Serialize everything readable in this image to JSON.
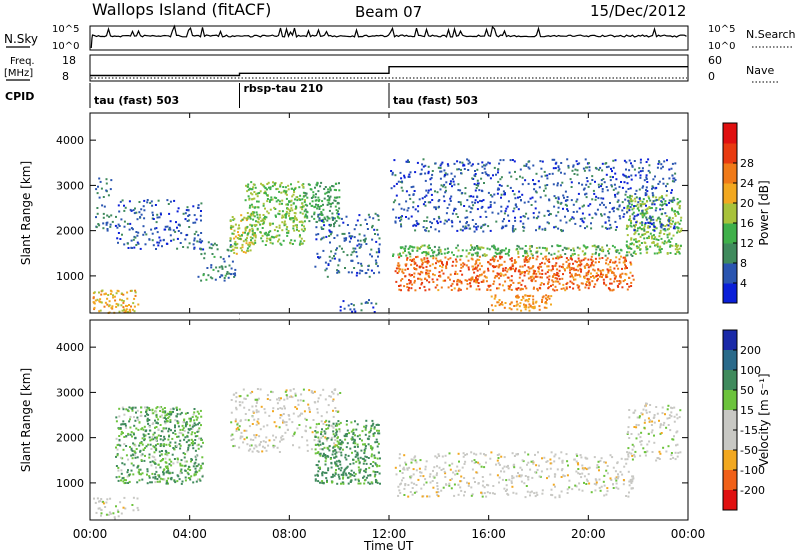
{
  "header": {
    "station": "Wallops Island (fitACF)",
    "beam": "Beam 07",
    "date": "15/Dec/2012"
  },
  "top_panels": {
    "nsky_label": "N.Sky",
    "nsky_ticks": [
      "10^5",
      "10^0"
    ],
    "nsearch_label": "N.Search",
    "freq_label_line1": "Freq.",
    "freq_label_line2": "[MHz]",
    "freq_ticks": [
      "18",
      "8"
    ],
    "nave_label": "Nave",
    "nave_ticks": [
      "60",
      "0"
    ],
    "cpid_label": "CPID",
    "cpid_segments": [
      {
        "label": "tau (fast) 503",
        "start_hr": 0,
        "end_hr": 6
      },
      {
        "label": "rbsp-tau 210",
        "start_hr": 6,
        "end_hr": 12
      },
      {
        "label": "tau (fast) 503",
        "start_hr": 12,
        "end_hr": 24
      }
    ]
  },
  "axes": {
    "xlabel": "Time UT",
    "x_ticks": [
      "00:00",
      "04:00",
      "08:00",
      "12:00",
      "16:00",
      "20:00",
      "00:00"
    ],
    "ylabel": "Slant Range [km]",
    "y_ticks": [
      "1000",
      "2000",
      "3000",
      "4000"
    ]
  },
  "colorbars": {
    "power": {
      "title": "Power [dB]",
      "ticks": [
        "4",
        "8",
        "12",
        "16",
        "20",
        "24",
        "28"
      ],
      "colors": [
        "#0a1fd8",
        "#2a55b0",
        "#3f8a5c",
        "#3fb04a",
        "#a8c23a",
        "#f2a820",
        "#f07a18",
        "#e83a10",
        "#e01010"
      ]
    },
    "velocity": {
      "title": "Velocity [m s⁻¹]",
      "ticks": [
        "200",
        "100",
        "50",
        "15",
        "-15",
        "-50",
        "-100",
        "-200"
      ],
      "colors": [
        "#1a2aa8",
        "#2a6a8a",
        "#3f8a5c",
        "#6cc33c",
        "#c8c8c4",
        "#c8c8c4",
        "#f2a820",
        "#f06018",
        "#e01010"
      ]
    }
  },
  "chart_data": {
    "type": "heatmap",
    "title": "Wallops Island (fitACF)  Beam 07  15/Dec/2012",
    "xlabel": "Time UT",
    "ylabel": "Slant Range [km]",
    "xlim": [
      0,
      24
    ],
    "ylim": [
      180,
      4600
    ],
    "frequency_mhz": [
      {
        "start_hr": 0,
        "end_hr": 6,
        "value": 10.5
      },
      {
        "start_hr": 6,
        "end_hr": 12,
        "value": 11.5
      },
      {
        "start_hr": 12,
        "end_hr": 24,
        "value": 14.5
      }
    ],
    "power_regions_db": [
      {
        "t0": 0.1,
        "t1": 1.9,
        "r0": 200,
        "r1": 700,
        "value": 22
      },
      {
        "t0": 0.2,
        "t1": 0.9,
        "r0": 2000,
        "r1": 3200,
        "value": 8
      },
      {
        "t0": 1.0,
        "t1": 4.5,
        "r0": 1600,
        "r1": 2700,
        "value": 6
      },
      {
        "t0": 4.3,
        "t1": 5.8,
        "r0": 900,
        "r1": 1800,
        "value": 9
      },
      {
        "t0": 5.6,
        "t1": 6.6,
        "r0": 1500,
        "r1": 2400,
        "value": 18
      },
      {
        "t0": 6.2,
        "t1": 8.6,
        "r0": 1700,
        "r1": 3100,
        "value": 16
      },
      {
        "t0": 8.6,
        "t1": 10.0,
        "r0": 2200,
        "r1": 3100,
        "value": 12
      },
      {
        "t0": 9.0,
        "t1": 11.6,
        "r0": 1000,
        "r1": 2400,
        "value": 7
      },
      {
        "t0": 10.0,
        "t1": 11.5,
        "r0": 200,
        "r1": 500,
        "value": 6
      },
      {
        "t0": 12.2,
        "t1": 21.8,
        "r0": 700,
        "r1": 1450,
        "value": 27
      },
      {
        "t0": 12.1,
        "t1": 22.0,
        "r0": 1450,
        "r1": 1700,
        "value": 14
      },
      {
        "t0": 16.0,
        "t1": 18.5,
        "r0": 250,
        "r1": 600,
        "value": 24
      },
      {
        "t0": 21.5,
        "t1": 23.7,
        "r0": 1500,
        "r1": 2800,
        "value": 16
      },
      {
        "t0": 12.0,
        "t1": 23.5,
        "r0": 2000,
        "r1": 3600,
        "value": 6
      }
    ],
    "velocity_regions_ms": [
      {
        "t0": 0.1,
        "t1": 1.9,
        "r0": 200,
        "r1": 700,
        "value": 0
      },
      {
        "t0": 5.6,
        "t1": 10.0,
        "r0": 1700,
        "r1": 3100,
        "value": 0
      },
      {
        "t0": 12.2,
        "t1": 21.8,
        "r0": 700,
        "r1": 1700,
        "value": 0
      },
      {
        "t0": 21.5,
        "t1": 23.7,
        "r0": 1500,
        "r1": 2800,
        "value": 0
      },
      {
        "t0": 1.0,
        "t1": 4.5,
        "r0": 1000,
        "r1": 2700,
        "value": 30
      },
      {
        "t0": 9.0,
        "t1": 11.6,
        "r0": 1000,
        "r1": 2400,
        "value": 40
      }
    ]
  }
}
